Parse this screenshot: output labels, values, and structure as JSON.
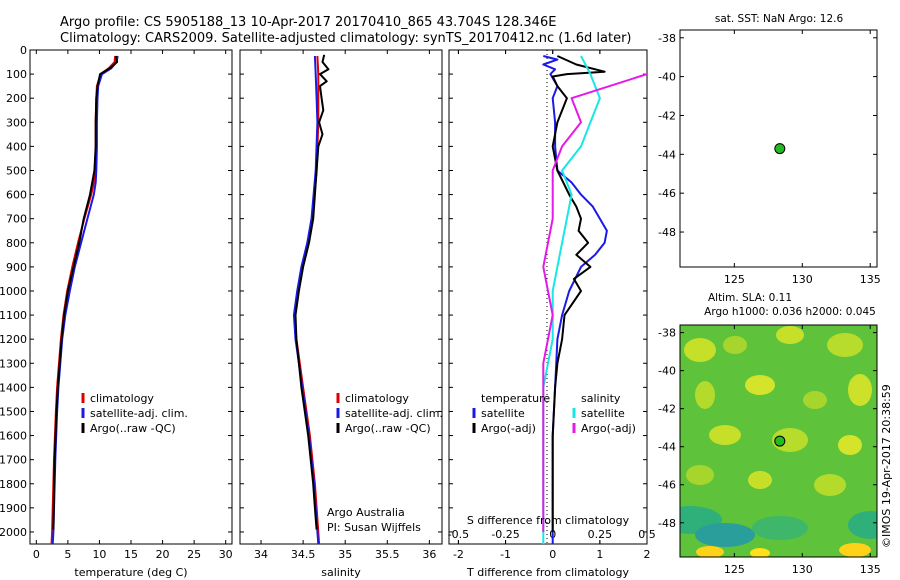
{
  "title_line1": "Argo profile: CS 5905188_13 10-Apr-2017 20170410_865 43.704S 128.346E",
  "title_line2": "Climatology: CARS2009. Satellite-adjusted climatology: synTS_20170412.nc (1.6d later)",
  "watermark": "©IMOS 19-Apr-2017 20:38:59",
  "colors": {
    "climatology": "#dd0000",
    "satellite": "#1a1ae6",
    "argo": "#000000",
    "sal_satellite": "#19e6e6",
    "sal_argo": "#e619e6",
    "sst_dot": "#22bb22"
  },
  "chart_data": [
    {
      "type": "line",
      "xlabel": "temperature (deg C)",
      "xlim": [
        -1,
        31
      ],
      "ylim": [
        2050,
        0
      ],
      "xticks": [
        "0",
        "5",
        "10",
        "15",
        "20",
        "25",
        "30"
      ],
      "yticks": [
        "0",
        "100",
        "200",
        "300",
        "400",
        "500",
        "600",
        "700",
        "800",
        "900",
        "1000",
        "1100",
        "1200",
        "1300",
        "1400",
        "1500",
        "1600",
        "1700",
        "1800",
        "1900",
        "2000"
      ],
      "legend": [
        "climatology",
        "satellite-adj. clim.",
        "Argo(..raw -QC)"
      ],
      "series": [
        {
          "name": "climatology",
          "key": "climatology",
          "depth": [
            25,
            50,
            75,
            100,
            150,
            200,
            300,
            400,
            500,
            550,
            600,
            700,
            800,
            900,
            1000,
            1100,
            1200,
            1300,
            1400,
            1500,
            1700,
            2000,
            2050
          ],
          "values": [
            12.5,
            12.4,
            11.5,
            10.2,
            9.6,
            9.5,
            9.4,
            9.4,
            9.3,
            9.1,
            8.7,
            7.6,
            6.6,
            5.7,
            4.9,
            4.3,
            3.9,
            3.6,
            3.3,
            3.1,
            2.8,
            2.5,
            2.4
          ]
        },
        {
          "name": "satellite-adj. clim.",
          "key": "satellite",
          "depth": [
            25,
            50,
            75,
            100,
            150,
            200,
            300,
            400,
            500,
            550,
            600,
            700,
            800,
            900,
            1000,
            1100,
            1200,
            1300,
            1400,
            1500,
            1700,
            2000,
            2050
          ],
          "values": [
            12.9,
            12.7,
            11.9,
            10.4,
            9.8,
            9.7,
            9.6,
            9.6,
            9.5,
            9.4,
            9.1,
            8.1,
            7.1,
            6.1,
            5.3,
            4.6,
            4.1,
            3.8,
            3.5,
            3.3,
            3.0,
            2.7,
            2.6
          ]
        },
        {
          "name": "Argo(..raw -QC)",
          "key": "argo",
          "depth": [
            25,
            50,
            75,
            100,
            150,
            200,
            300,
            400,
            500,
            600,
            700,
            800,
            900,
            1000,
            1100,
            1200,
            1300,
            1400,
            1500,
            1700,
            1990
          ],
          "values": [
            12.6,
            12.8,
            11.7,
            10.1,
            9.7,
            9.5,
            9.4,
            9.4,
            9.2,
            8.5,
            7.5,
            6.8,
            5.9,
            5.0,
            4.4,
            4.0,
            3.7,
            3.4,
            3.2,
            2.9,
            2.7
          ]
        }
      ]
    },
    {
      "type": "line",
      "xlabel": "salinity",
      "xlim": [
        33.75,
        36.15
      ],
      "ylim": [
        2050,
        0
      ],
      "xticks": [
        "34",
        "34.5",
        "35",
        "35.5",
        "36"
      ],
      "legend": [
        "climatology",
        "satellite-adj. clim.",
        "Argo(..raw -QC)"
      ],
      "annotation": [
        "Argo Australia",
        "PI: Susan Wijffels"
      ],
      "series": [
        {
          "name": "climatology",
          "key": "climatology",
          "depth": [
            25,
            100,
            200,
            300,
            500,
            700,
            800,
            900,
            1000,
            1100,
            1200,
            1300,
            1400,
            1500,
            1600,
            1700,
            1800,
            1900,
            2000,
            2050
          ],
          "values": [
            34.67,
            34.68,
            34.68,
            34.68,
            34.66,
            34.61,
            34.56,
            34.49,
            34.44,
            34.4,
            34.42,
            34.46,
            34.5,
            34.54,
            34.58,
            34.61,
            34.64,
            34.66,
            34.68,
            34.69
          ]
        },
        {
          "name": "satellite-adj. clim.",
          "key": "satellite",
          "depth": [
            25,
            100,
            200,
            300,
            500,
            700,
            800,
            900,
            1000,
            1100,
            1200,
            1300,
            1400,
            1500,
            1600,
            1700,
            1800,
            1900,
            2000,
            2050
          ],
          "values": [
            34.64,
            34.65,
            34.66,
            34.67,
            34.65,
            34.6,
            34.55,
            34.48,
            34.43,
            34.39,
            34.41,
            34.45,
            34.49,
            34.53,
            34.57,
            34.6,
            34.63,
            34.65,
            34.67,
            34.68
          ]
        },
        {
          "name": "Argo(..raw -QC)",
          "key": "argo",
          "depth": [
            20,
            50,
            80,
            100,
            130,
            150,
            200,
            250,
            300,
            350,
            400,
            500,
            700,
            800,
            900,
            1000,
            1100,
            1200,
            1300,
            1400,
            1500,
            1600,
            1700,
            1800,
            1900,
            1990
          ],
          "values": [
            34.75,
            34.73,
            34.8,
            34.7,
            34.78,
            34.7,
            34.72,
            34.74,
            34.69,
            34.73,
            34.68,
            34.66,
            34.62,
            34.57,
            34.5,
            34.45,
            34.41,
            34.42,
            34.45,
            34.48,
            34.52,
            34.56,
            34.59,
            34.62,
            34.64,
            34.66
          ]
        }
      ]
    },
    {
      "type": "line",
      "xlabel": "T difference from climatology",
      "x2label": "S difference from climatology",
      "xlim": [
        -2.2,
        2.0
      ],
      "ylim": [
        2050,
        0
      ],
      "xticks": [
        "-2",
        "-1",
        "0",
        "1",
        "2"
      ],
      "x2ticks": [
        "-0.5",
        "-0.25",
        "0",
        "0.25",
        "0.5"
      ],
      "legend_headers": [
        "temperature",
        "salinity"
      ],
      "legend": [
        "satellite",
        "Argo(-adj)",
        "satellite",
        "Argo(-adj)"
      ],
      "series": [
        {
          "name": "satellite",
          "key": "satellite",
          "depth": [
            25,
            40,
            60,
            80,
            100,
            150,
            200,
            300,
            400,
            500,
            550,
            600,
            650,
            700,
            750,
            800,
            850,
            900,
            1000,
            1100,
            1200,
            1400,
            1600,
            2000,
            2050
          ],
          "values": [
            -0.2,
            0.1,
            -0.2,
            0.05,
            -0.05,
            0.1,
            0.0,
            0.05,
            0.05,
            0.1,
            0.4,
            0.6,
            0.85,
            1.0,
            1.15,
            1.1,
            0.9,
            0.6,
            0.35,
            0.2,
            0.1,
            0.05,
            0.0,
            0.0,
            0.0
          ]
        },
        {
          "name": "Argo(-adj)",
          "key": "argo",
          "depth": [
            25,
            60,
            90,
            100,
            110,
            150,
            200,
            300,
            400,
            500,
            600,
            650,
            700,
            750,
            800,
            850,
            900,
            950,
            1000,
            1100,
            1200,
            1300,
            1400,
            1600,
            2000
          ],
          "values": [
            0.1,
            0.5,
            1.1,
            0.3,
            0.0,
            0.1,
            0.3,
            0.1,
            0.0,
            0.1,
            0.35,
            0.5,
            0.6,
            0.55,
            0.75,
            0.5,
            0.8,
            0.45,
            0.6,
            0.25,
            0.2,
            0.1,
            0.05,
            0.0,
            0.0
          ]
        },
        {
          "name": "satellite",
          "key": "sal_satellite",
          "depth": [
            25,
            100,
            200,
            300,
            400,
            500,
            600,
            800,
            1000,
            1200,
            1400,
            1600,
            1800,
            2000,
            2050
          ],
          "values": [
            0.15,
            0.2,
            0.25,
            0.2,
            0.15,
            0.05,
            0.1,
            0.05,
            0.0,
            0.0,
            -0.05,
            -0.05,
            -0.05,
            -0.05,
            -0.05
          ]
        },
        {
          "name": "Argo(-adj)",
          "key": "sal_argo",
          "depth": [
            25,
            75,
            100,
            200,
            300,
            400,
            500,
            700,
            900,
            1100,
            1300,
            1500,
            1800,
            2000
          ],
          "values": [
            0.6,
            0.8,
            0.5,
            0.1,
            0.15,
            0.05,
            0.0,
            0.0,
            -0.05,
            0.0,
            -0.05,
            -0.05,
            -0.05,
            -0.05
          ]
        }
      ]
    },
    {
      "type": "scatter",
      "title": "sat. SST: NaN Argo: 12.6",
      "xlim": [
        121,
        135.5
      ],
      "ylim": [
        -49.8,
        -37.6
      ],
      "xticks": [
        "125",
        "130",
        "135"
      ],
      "yticks": [
        "-38",
        "-40",
        "-42",
        "-44",
        "-46",
        "-48"
      ],
      "points": [
        {
          "lon": 128.346,
          "lat": -43.704
        }
      ]
    },
    {
      "type": "heatmap",
      "title_line1": "Altim. SLA: 0.11",
      "title_line2": "Argo h1000: 0.036 h2000: 0.045",
      "xlim": [
        121,
        135.5
      ],
      "ylim": [
        -49.8,
        -37.6
      ],
      "xticks": [
        "125",
        "130",
        "135"
      ],
      "yticks": [
        "-38",
        "-40",
        "-42",
        "-44",
        "-46",
        "-48"
      ],
      "points": [
        {
          "lon": 128.346,
          "lat": -43.704
        }
      ]
    }
  ]
}
